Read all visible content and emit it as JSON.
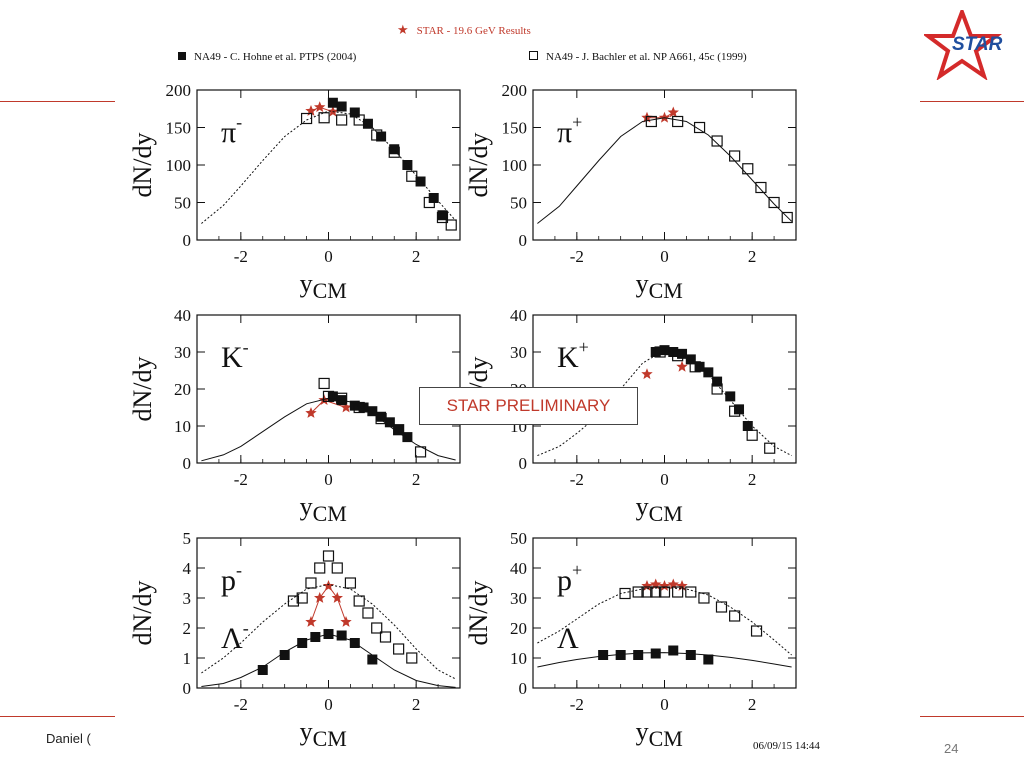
{
  "slide": {
    "author": "Daniel (",
    "page_number": "24",
    "preliminary_label": "STAR PRELIMINARY",
    "logo_text": "STAR"
  },
  "figure": {
    "star_results_label": "STAR - 19.6 GeV Results",
    "legend_filled": "NA49 - C. Hohne et al. PTPS (2004)",
    "legend_open": "NA49 - J. Bachler et al. NP A661, 45c (1999)",
    "timestamp": "06/09/15   14:44"
  },
  "colors": {
    "star_red": "#c0392b",
    "logo_blue": "#1f4e9e",
    "marker_black": "#111111"
  },
  "chart_data": [
    {
      "type": "scatter",
      "particle": "π-",
      "xlabel": "y_CM",
      "ylabel": "dN/dy",
      "xlim": [
        -3,
        3
      ],
      "ylim": [
        0,
        200
      ],
      "xticks": [
        -2,
        0,
        2
      ],
      "yticks": [
        0,
        50,
        100,
        150,
        200
      ],
      "series": [
        {
          "marker": "star",
          "points": [
            [
              -0.4,
              172
            ],
            [
              -0.2,
              177
            ],
            [
              0.1,
              171
            ]
          ]
        },
        {
          "marker": "filled-square",
          "points": [
            [
              0.1,
              183
            ],
            [
              0.3,
              178
            ],
            [
              0.6,
              170
            ],
            [
              0.9,
              155
            ],
            [
              1.2,
              138
            ],
            [
              1.5,
              121
            ],
            [
              1.8,
              100
            ],
            [
              2.1,
              78
            ],
            [
              2.4,
              56
            ],
            [
              2.6,
              33
            ]
          ]
        },
        {
          "marker": "open-square",
          "points": [
            [
              -0.5,
              162
            ],
            [
              -0.1,
              163
            ],
            [
              0.3,
              160
            ],
            [
              0.7,
              160
            ],
            [
              1.1,
              140
            ],
            [
              1.5,
              117
            ],
            [
              1.9,
              85
            ],
            [
              2.3,
              50
            ],
            [
              2.6,
              30
            ],
            [
              2.8,
              20
            ]
          ]
        },
        {
          "style": "dotted-curve",
          "points": [
            [
              -2.9,
              22
            ],
            [
              -2.4,
              46
            ],
            [
              -2,
              72
            ],
            [
              -1.5,
              106
            ],
            [
              -1,
              138
            ],
            [
              -0.5,
              160
            ],
            [
              0,
              172
            ],
            [
              0.5,
              168
            ],
            [
              1,
              150
            ],
            [
              1.5,
              120
            ],
            [
              2,
              86
            ],
            [
              2.5,
              52
            ],
            [
              2.9,
              26
            ]
          ]
        }
      ]
    },
    {
      "type": "scatter",
      "particle": "π+",
      "xlabel": "y_CM",
      "ylabel": "dN/dy",
      "xlim": [
        -3,
        3
      ],
      "ylim": [
        0,
        200
      ],
      "xticks": [
        -2,
        0,
        2
      ],
      "yticks": [
        0,
        50,
        100,
        150,
        200
      ],
      "series": [
        {
          "marker": "star",
          "points": [
            [
              -0.4,
              163
            ],
            [
              0,
              163
            ],
            [
              0.2,
              170
            ]
          ]
        },
        {
          "marker": "open-square",
          "points": [
            [
              -0.3,
              158
            ],
            [
              0.3,
              158
            ],
            [
              0.8,
              150
            ],
            [
              1.2,
              132
            ],
            [
              1.6,
              112
            ],
            [
              1.9,
              95
            ],
            [
              2.2,
              70
            ],
            [
              2.5,
              50
            ],
            [
              2.8,
              30
            ]
          ]
        },
        {
          "style": "solid-curve",
          "points": [
            [
              -2.9,
              22
            ],
            [
              -2.4,
              45
            ],
            [
              -2,
              72
            ],
            [
              -1.5,
              106
            ],
            [
              -1,
              138
            ],
            [
              -0.5,
              158
            ],
            [
              0,
              163
            ],
            [
              0.5,
              158
            ],
            [
              1,
              140
            ],
            [
              1.5,
              112
            ],
            [
              2,
              80
            ],
            [
              2.5,
              48
            ],
            [
              2.9,
              25
            ]
          ]
        }
      ]
    },
    {
      "type": "scatter",
      "particle": "K-",
      "xlabel": "y_CM",
      "ylabel": "dN/dy",
      "xlim": [
        -3,
        3
      ],
      "ylim": [
        0,
        40
      ],
      "xticks": [
        -2,
        0,
        2
      ],
      "yticks": [
        0,
        10,
        20,
        30,
        40
      ],
      "series": [
        {
          "marker": "star",
          "points": [
            [
              -0.4,
              13.5
            ],
            [
              -0.1,
              17
            ],
            [
              0.4,
              15
            ]
          ]
        },
        {
          "marker": "filled-square",
          "points": [
            [
              0.1,
              18
            ],
            [
              0.3,
              17
            ],
            [
              0.6,
              15.5
            ],
            [
              0.8,
              15
            ],
            [
              1.0,
              14
            ],
            [
              1.2,
              12.5
            ],
            [
              1.4,
              11
            ],
            [
              1.6,
              9
            ],
            [
              1.8,
              7
            ]
          ]
        },
        {
          "marker": "open-square",
          "points": [
            [
              -0.1,
              21.5
            ],
            [
              0,
              18
            ],
            [
              0.3,
              17.5
            ],
            [
              0.7,
              15
            ],
            [
              1.2,
              12
            ],
            [
              1.6,
              9
            ],
            [
              2.1,
              3
            ]
          ]
        },
        {
          "style": "solid-curve",
          "points": [
            [
              -2.9,
              0.6
            ],
            [
              -2.4,
              2.2
            ],
            [
              -2,
              4.5
            ],
            [
              -1.5,
              8.5
            ],
            [
              -1,
              12.5
            ],
            [
              -0.5,
              16
            ],
            [
              0,
              17.5
            ],
            [
              0.5,
              16.5
            ],
            [
              1,
              13.5
            ],
            [
              1.5,
              9
            ],
            [
              2,
              5
            ],
            [
              2.5,
              2
            ],
            [
              2.9,
              0.8
            ]
          ]
        }
      ]
    },
    {
      "type": "scatter",
      "particle": "K+",
      "xlabel": "y_CM",
      "ylabel": "dN/dy",
      "xlim": [
        -3,
        3
      ],
      "ylim": [
        0,
        40
      ],
      "xticks": [
        -2,
        0,
        2
      ],
      "yticks": [
        0,
        10,
        20,
        30,
        40
      ],
      "series": [
        {
          "marker": "star",
          "points": [
            [
              -0.4,
              24
            ],
            [
              0.4,
              26
            ]
          ]
        },
        {
          "marker": "filled-square",
          "points": [
            [
              -0.2,
              30
            ],
            [
              0,
              30.5
            ],
            [
              0.2,
              30
            ],
            [
              0.4,
              29.5
            ],
            [
              0.6,
              28
            ],
            [
              0.8,
              26
            ],
            [
              1,
              24.5
            ],
            [
              1.2,
              22
            ],
            [
              1.5,
              18
            ],
            [
              1.7,
              14.5
            ],
            [
              1.9,
              10
            ]
          ]
        },
        {
          "marker": "open-square",
          "points": [
            [
              -0.1,
              30
            ],
            [
              0.3,
              29
            ],
            [
              0.7,
              26
            ],
            [
              1.2,
              20
            ],
            [
              1.6,
              14
            ],
            [
              2.0,
              7.5
            ],
            [
              2.4,
              4
            ]
          ]
        },
        {
          "style": "dotted-curve",
          "points": [
            [
              -2.9,
              2
            ],
            [
              -2.4,
              4.5
            ],
            [
              -2,
              8
            ],
            [
              -1.5,
              13
            ],
            [
              -1,
              20
            ],
            [
              -0.5,
              27
            ],
            [
              0,
              30.5
            ],
            [
              0.5,
              29
            ],
            [
              1,
              24
            ],
            [
              1.5,
              17
            ],
            [
              2,
              10
            ],
            [
              2.5,
              4.5
            ],
            [
              2.9,
              2
            ]
          ]
        }
      ]
    },
    {
      "type": "scatter",
      "particle": "p-",
      "particle2": "Λ-",
      "xlabel": "y_CM",
      "ylabel": "dN/dy",
      "xlim": [
        -3,
        3
      ],
      "ylim": [
        0,
        5
      ],
      "xticks": [
        -2,
        0,
        2
      ],
      "yticks": [
        0,
        1,
        2,
        3,
        4,
        5
      ],
      "series": [
        {
          "marker": "star",
          "points": [
            [
              -0.4,
              2.2
            ],
            [
              -0.2,
              3
            ],
            [
              0,
              3.4
            ],
            [
              0.2,
              3
            ],
            [
              0.4,
              2.2
            ]
          ]
        },
        {
          "marker": "open-square",
          "points": [
            [
              -0.8,
              2.9
            ],
            [
              -0.6,
              3
            ],
            [
              -0.4,
              3.5
            ],
            [
              -0.2,
              4
            ],
            [
              0,
              4.4
            ],
            [
              0.2,
              4
            ],
            [
              0.5,
              3.5
            ],
            [
              0.7,
              2.9
            ],
            [
              0.9,
              2.5
            ],
            [
              1.1,
              2
            ],
            [
              1.3,
              1.7
            ],
            [
              1.6,
              1.3
            ],
            [
              1.9,
              1
            ]
          ]
        },
        {
          "marker": "filled-square",
          "points": [
            [
              -1.5,
              0.6
            ],
            [
              -1.0,
              1.1
            ],
            [
              -0.6,
              1.5
            ],
            [
              -0.3,
              1.7
            ],
            [
              0,
              1.8
            ],
            [
              0.3,
              1.75
            ],
            [
              0.6,
              1.5
            ],
            [
              1.0,
              0.95
            ]
          ]
        },
        {
          "style": "dotted-curve",
          "points": [
            [
              -2.9,
              0.5
            ],
            [
              -2.4,
              1
            ],
            [
              -2,
              1.5
            ],
            [
              -1.5,
              2.2
            ],
            [
              -1,
              2.8
            ],
            [
              -0.5,
              3.3
            ],
            [
              0,
              3.45
            ],
            [
              0.5,
              3.3
            ],
            [
              1,
              2.8
            ],
            [
              1.5,
              2.1
            ],
            [
              2,
              1.3
            ],
            [
              2.5,
              0.6
            ],
            [
              2.9,
              0.3
            ]
          ]
        },
        {
          "style": "solid-curve",
          "points": [
            [
              -2.9,
              0.05
            ],
            [
              -2.4,
              0.15
            ],
            [
              -2,
              0.35
            ],
            [
              -1.5,
              0.7
            ],
            [
              -1,
              1.2
            ],
            [
              -0.5,
              1.6
            ],
            [
              0,
              1.8
            ],
            [
              0.5,
              1.6
            ],
            [
              1,
              1.1
            ],
            [
              1.5,
              0.6
            ],
            [
              2,
              0.25
            ],
            [
              2.5,
              0.08
            ],
            [
              2.9,
              0.02
            ]
          ]
        }
      ]
    },
    {
      "type": "scatter",
      "particle": "p+",
      "particle2": "Λ",
      "xlabel": "y_CM",
      "ylabel": "dN/dy",
      "xlim": [
        -3,
        3
      ],
      "ylim": [
        0,
        50
      ],
      "xticks": [
        -2,
        0,
        2
      ],
      "yticks": [
        0,
        10,
        20,
        30,
        40,
        50
      ],
      "series": [
        {
          "marker": "star",
          "points": [
            [
              -0.4,
              34
            ],
            [
              -0.2,
              34.5
            ],
            [
              0,
              34
            ],
            [
              0.2,
              34.5
            ],
            [
              0.4,
              34
            ]
          ]
        },
        {
          "marker": "open-square",
          "points": [
            [
              -0.9,
              31.5
            ],
            [
              -0.6,
              32
            ],
            [
              -0.4,
              32
            ],
            [
              -0.2,
              32
            ],
            [
              0,
              32
            ],
            [
              0.3,
              32
            ],
            [
              0.6,
              32
            ],
            [
              0.9,
              30
            ],
            [
              1.3,
              27
            ],
            [
              1.6,
              24
            ],
            [
              2.1,
              19
            ]
          ]
        },
        {
          "marker": "filled-square",
          "points": [
            [
              -1.4,
              11
            ],
            [
              -1.0,
              11
            ],
            [
              -0.6,
              11
            ],
            [
              -0.2,
              11.5
            ],
            [
              0.2,
              12.5
            ],
            [
              0.6,
              11
            ],
            [
              1.0,
              9.5
            ]
          ]
        },
        {
          "style": "dotted-curve",
          "points": [
            [
              -2.9,
              15
            ],
            [
              -2.4,
              19
            ],
            [
              -2,
              23
            ],
            [
              -1.5,
              28
            ],
            [
              -1,
              31.5
            ],
            [
              -0.5,
              33
            ],
            [
              0,
              33.5
            ],
            [
              0.5,
              33
            ],
            [
              1,
              31
            ],
            [
              1.5,
              27
            ],
            [
              2,
              22
            ],
            [
              2.5,
              16
            ],
            [
              2.9,
              11
            ]
          ]
        },
        {
          "style": "solid-curve",
          "points": [
            [
              -2.9,
              7
            ],
            [
              -2.4,
              8.5
            ],
            [
              -2,
              9.5
            ],
            [
              -1.5,
              10.5
            ],
            [
              -1,
              11.2
            ],
            [
              -0.5,
              11.7
            ],
            [
              0,
              11.8
            ],
            [
              0.5,
              11.5
            ],
            [
              1,
              11
            ],
            [
              1.5,
              10.2
            ],
            [
              2,
              9.2
            ],
            [
              2.5,
              8
            ],
            [
              2.9,
              7
            ]
          ]
        }
      ]
    }
  ]
}
